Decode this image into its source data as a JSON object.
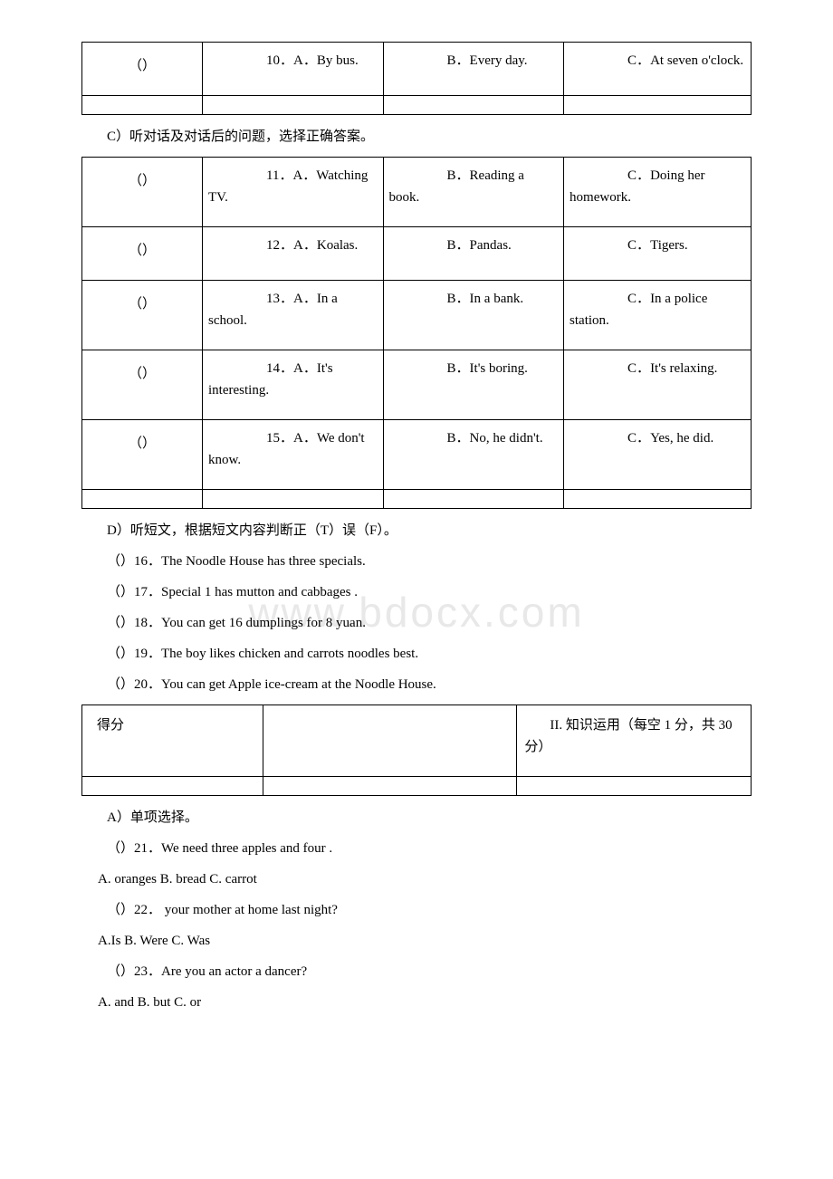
{
  "watermark": "www.bdocx.com",
  "table1": {
    "rows": [
      {
        "blank": "（）",
        "a_num": "10．A．",
        "a": "By bus.",
        "b_num": "B．",
        "b": "Every day.",
        "c_num": "C．",
        "c": "At seven o'clock."
      }
    ]
  },
  "section_c": "C）听对话及对话后的问题，选择正确答案。",
  "table2": {
    "rows": [
      {
        "blank": "（）",
        "a_num": "11．A．",
        "a": "Watching TV.",
        "b_num": "B．",
        "b": "Reading a book.",
        "c_num": "C．",
        "c": "Doing her homework."
      },
      {
        "blank": "（）",
        "a_num": "12．A．",
        "a": "Koalas.",
        "b_num": "B．",
        "b": "Pandas.",
        "c_num": "C．",
        "c": "Tigers."
      },
      {
        "blank": "（）",
        "a_num": "13．A．",
        "a": "In a school.",
        "b_num": "B．",
        "b": "In a bank.",
        "c_num": "C．",
        "c": "In a police station."
      },
      {
        "blank": "（）",
        "a_num": "14．A．",
        "a": "It's interesting.",
        "b_num": "B．",
        "b": "It's boring.",
        "c_num": "C．",
        "c": "It's relaxing."
      },
      {
        "blank": "（）",
        "a_num": "15．A．",
        "a": "We don't know.",
        "b_num": "B．",
        "b": "No, he didn't.",
        "c_num": "C．",
        "c": "Yes, he did."
      }
    ]
  },
  "section_d": "D）听短文，根据短文内容判断正（T）误（F）。",
  "tf_items": [
    "（）16．The Noodle House has three specials.",
    "（）17．Special 1 has mutton and cabbages .",
    "（）18．You can get 16 dumplings for 8 yuan.",
    "（）19．The boy likes chicken and carrots noodles best.",
    "（）20．You can get Apple ice-cream at the Noodle House."
  ],
  "table3": {
    "header_left": "得分",
    "header_right": "II. 知识运用（每空 1 分，共 30 分）"
  },
  "section_a": "A）单项选择。",
  "mc_items": [
    {
      "q": "（）21．We need three apples and four  .",
      "a": "A. oranges B. bread C. carrot"
    },
    {
      "q": "（）22．    your mother at home last night?",
      "a": "A.Is B. Were C. Was"
    },
    {
      "q": "（）23．Are you an actor  a dancer?",
      "a": " A. and B. but C. or"
    }
  ]
}
